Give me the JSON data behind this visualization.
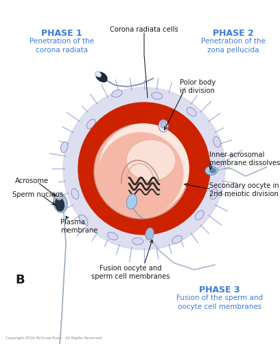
{
  "bg_color": "#ffffff",
  "phase1_title": "PHASE 1",
  "phase1_text": "Penetration of the\ncorona radiata",
  "phase2_title": "PHASE 2",
  "phase2_text": "Penetration of the\nzona pellucida",
  "phase3_title": "PHASE 3",
  "phase3_text": "Fusion of the sperm and\noocyte cell membranes",
  "label_corona": "Corona radiata cells",
  "label_polar": "Polor body\nin division",
  "label_acrosome": "Acrosome",
  "label_sperm_nucleus": "Sperm nucleus",
  "label_plasma": "Plasma\nmembrane",
  "label_inner_acrosomal": "Inner acrosomal\nmembrane dissolves",
  "label_secondary": "Secondary oocyte in\n2nd meiotic division",
  "label_fusion": "Fusion oocyte and\nsperm cell membranes",
  "label_B": "B",
  "phase_color": "#3a7bd5",
  "label_color": "#1a1a1a",
  "zona_color": "#cc2200",
  "corona_fill": "#c8c8e8",
  "oocyte_color": "#f5b8a8",
  "inner_blob_color": "#fde8e0",
  "copyright": "Copyright 2016 McGraw-Evan   All Rights Reserved"
}
